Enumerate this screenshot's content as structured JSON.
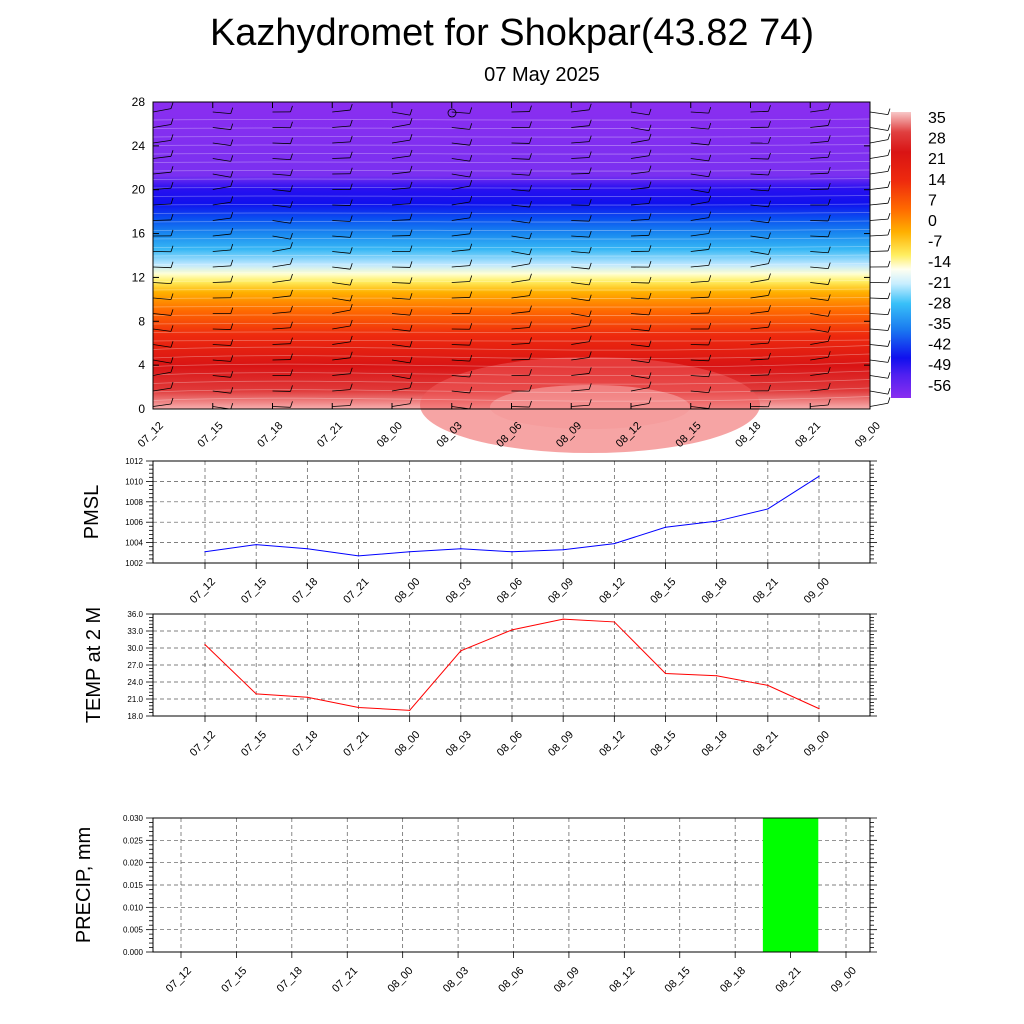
{
  "header": {
    "title": "Kazhydromet for Shokpar(43.82 74)",
    "date": "07 May 2025"
  },
  "time_labels": [
    "07_12",
    "07_15",
    "07_18",
    "07_21",
    "08_00",
    "08_03",
    "08_06",
    "08_09",
    "08_12",
    "08_15",
    "08_18",
    "08_21",
    "09_00"
  ],
  "colorbar": {
    "labels": [
      "35",
      "28",
      "21",
      "14",
      "7",
      "0",
      "-7",
      "-14",
      "-21",
      "-28",
      "-35",
      "-42",
      "-49",
      "-56"
    ]
  },
  "chart_data": [
    {
      "type": "heatmap",
      "title": "",
      "x": [
        "07_12",
        "07_15",
        "07_18",
        "07_21",
        "08_00",
        "08_03",
        "08_06",
        "08_09",
        "08_12",
        "08_15",
        "08_18",
        "08_21",
        "09_00"
      ],
      "ylim": [
        0,
        28
      ],
      "yticks": [
        0,
        4,
        8,
        12,
        16,
        20,
        24,
        28
      ],
      "ytick_labels": [
        "0",
        "4",
        "8",
        "12",
        "16",
        "20",
        "24",
        "28"
      ],
      "colorbar_range": [
        -56,
        35
      ],
      "overlay": "wind barbs"
    },
    {
      "type": "line",
      "ylabel": "PMSL",
      "x": [
        "07_12",
        "07_15",
        "07_18",
        "07_21",
        "08_00",
        "08_03",
        "08_06",
        "08_09",
        "08_12",
        "08_15",
        "08_18",
        "08_21",
        "09_00"
      ],
      "values": [
        1003.1,
        1003.8,
        1003.4,
        1002.7,
        1003.1,
        1003.4,
        1003.1,
        1003.3,
        1003.9,
        1005.5,
        1006.1,
        1007.3,
        1010.5
      ],
      "ylim": [
        1002,
        1012
      ],
      "yticks": [
        1002,
        1004,
        1006,
        1008,
        1010,
        1012
      ],
      "ytick_labels": [
        "1002",
        "1004",
        "1006",
        "1008",
        "1010",
        "1012"
      ],
      "color": "#0000ff",
      "grid": true
    },
    {
      "type": "line",
      "ylabel": "TEMP at 2 M",
      "x": [
        "07_12",
        "07_15",
        "07_18",
        "07_21",
        "08_00",
        "08_03",
        "08_06",
        "08_09",
        "08_12",
        "08_15",
        "08_18",
        "08_21",
        "09_00"
      ],
      "values": [
        30.6,
        21.9,
        21.3,
        19.5,
        19.0,
        29.5,
        33.2,
        35.1,
        34.6,
        25.5,
        25.1,
        23.4,
        19.3
      ],
      "ylim": [
        18,
        36
      ],
      "yticks": [
        18,
        21,
        24,
        27,
        30,
        33,
        36
      ],
      "ytick_labels": [
        "18.0",
        "21.0",
        "24.0",
        "27.0",
        "30.0",
        "33.0",
        "36.0"
      ],
      "color": "#ff0000",
      "grid": true
    },
    {
      "type": "bar",
      "ylabel": "PRECIP, mm",
      "categories": [
        "07_12",
        "07_15",
        "07_18",
        "07_21",
        "08_00",
        "08_03",
        "08_06",
        "08_09",
        "08_12",
        "08_15",
        "08_18",
        "08_21",
        "09_00"
      ],
      "values": [
        0,
        0,
        0,
        0,
        0,
        0,
        0,
        0,
        0,
        0,
        0,
        0.03,
        0
      ],
      "ylim": [
        0,
        0.03
      ],
      "yticks": [
        0,
        0.005,
        0.01,
        0.015,
        0.02,
        0.025,
        0.03
      ],
      "ytick_labels": [
        "0.000",
        "0.005",
        "0.010",
        "0.015",
        "0.020",
        "0.025",
        "0.030"
      ],
      "color": "#00ff00",
      "grid": true
    }
  ]
}
